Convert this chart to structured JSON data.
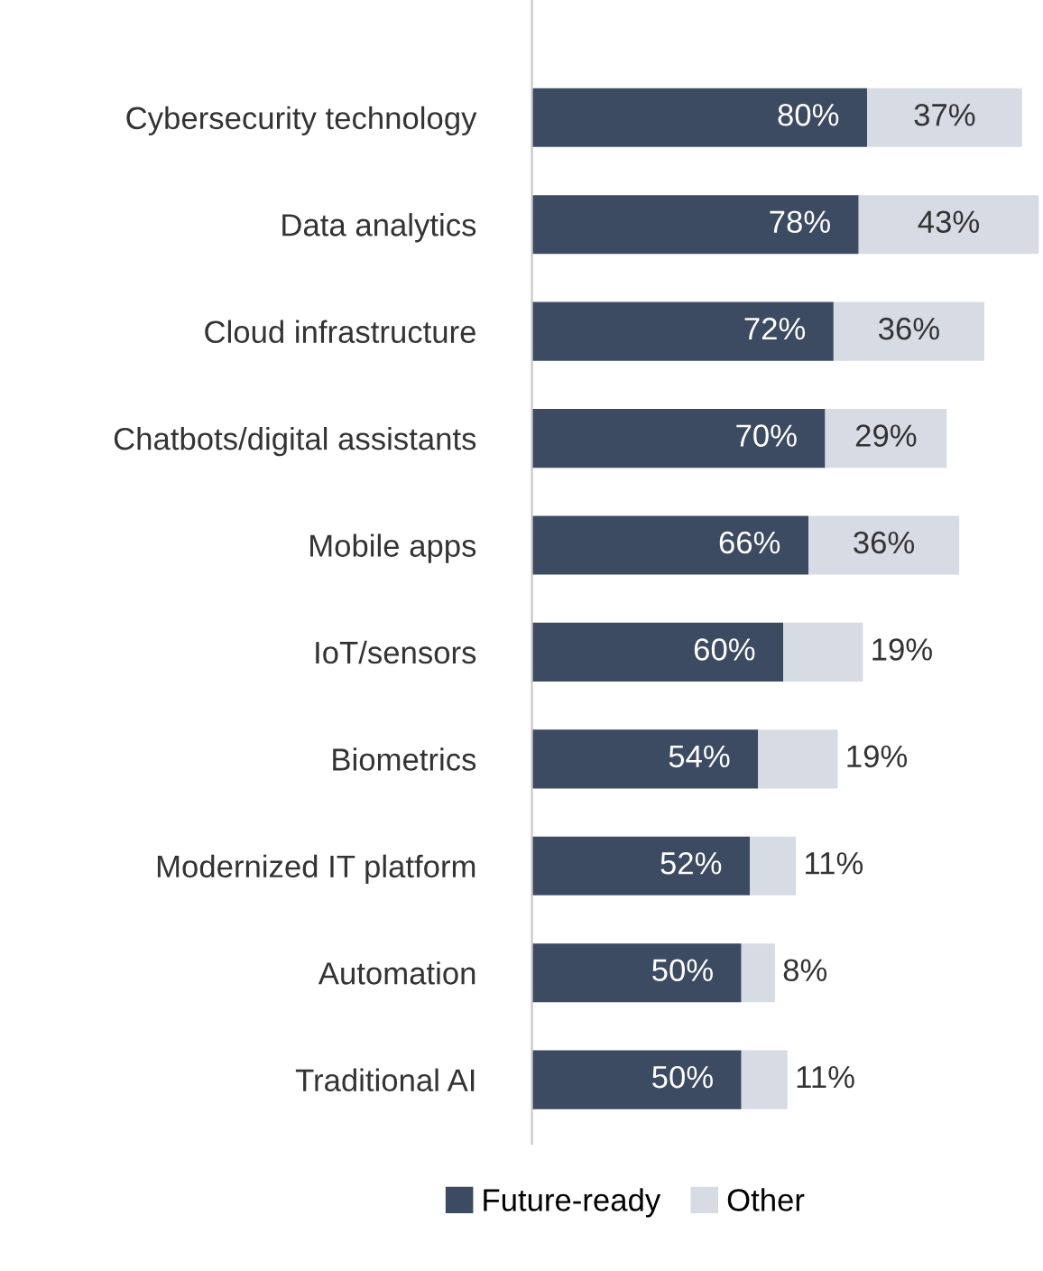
{
  "chart_data": {
    "type": "bar",
    "orientation": "horizontal",
    "stacked": true,
    "categories": [
      "Cybersecurity technology",
      "Data analytics",
      "Cloud infrastructure",
      "Chatbots/digital assistants",
      "Mobile apps",
      "IoT/sensors",
      "Biometrics",
      "Modernized IT platform",
      "Automation",
      "Traditional AI"
    ],
    "series": [
      {
        "name": "Future-ready",
        "color": "#3c4a62",
        "values": [
          80,
          78,
          72,
          70,
          66,
          60,
          54,
          52,
          50,
          50
        ],
        "value_labels": [
          "80%",
          "78%",
          "72%",
          "70%",
          "66%",
          "60%",
          "54%",
          "52%",
          "50%",
          "50%"
        ]
      },
      {
        "name": "Other",
        "color": "#d6dbe4",
        "values": [
          37,
          43,
          36,
          29,
          36,
          19,
          19,
          11,
          8,
          11
        ],
        "value_labels": [
          "37%",
          "43%",
          "36%",
          "29%",
          "36%",
          "19%",
          "19%",
          "11%",
          "8%",
          "11%"
        ]
      }
    ],
    "xlim": [
      0,
      122
    ],
    "legend": "bottom",
    "tick_labels": "y"
  }
}
